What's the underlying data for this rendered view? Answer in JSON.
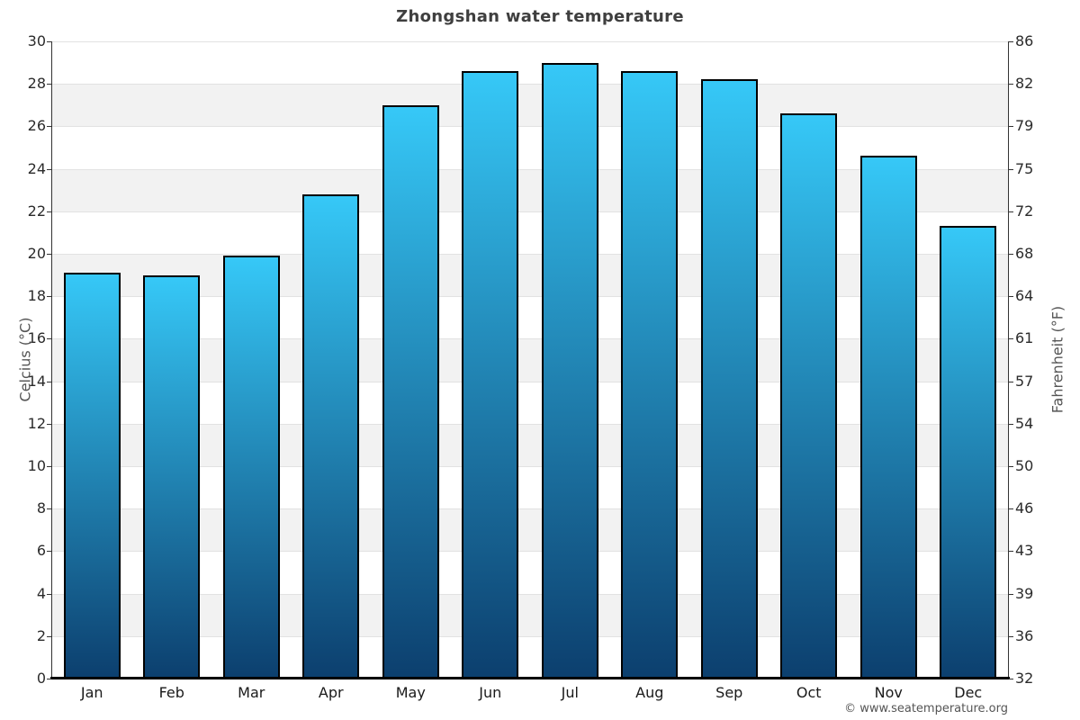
{
  "chart_data": {
    "type": "bar",
    "title": "Zhongshan water temperature",
    "ylabel_left": "Celcius (°C)",
    "ylabel_right": "Fahrenheit (°F)",
    "categories": [
      "Jan",
      "Feb",
      "Mar",
      "Apr",
      "May",
      "Jun",
      "Jul",
      "Aug",
      "Sep",
      "Oct",
      "Nov",
      "Dec"
    ],
    "values": [
      19.1,
      19.0,
      19.9,
      22.8,
      27.0,
      28.6,
      29.0,
      28.6,
      28.2,
      26.6,
      24.6,
      21.3
    ],
    "units": "°C",
    "ylim": [
      0,
      30
    ],
    "celsius_ticks": [
      30,
      28,
      26,
      24,
      22,
      20,
      18,
      16,
      14,
      12,
      10,
      8,
      6,
      4,
      2,
      0
    ],
    "fahrenheit_ticks": [
      86,
      82,
      79,
      75,
      72,
      68,
      64,
      61,
      57,
      54,
      50,
      46,
      43,
      39,
      36,
      32
    ],
    "grid": "horizontal gridlines every 2°C with alternating white/gray bands",
    "legend": "none",
    "colors": {
      "bar_top": "#36c8f7",
      "bar_bottom": "#0c3f6e",
      "bar_border": "#000000",
      "band_gray": "#f2f2f2",
      "band_white": "#ffffff",
      "gridline": "#e2e2e2",
      "axis_line": "#333333",
      "baseline": "#000000"
    }
  },
  "footer": {
    "copyright": "© www.seatemperature.org"
  }
}
